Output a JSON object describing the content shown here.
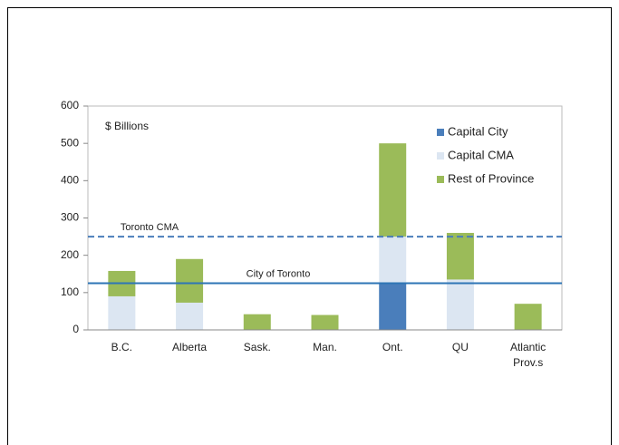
{
  "chart_data": {
    "type": "bar",
    "stacked": true,
    "annotation": "$ Billions",
    "categories": [
      "B.C.",
      "Alberta",
      "Sask.",
      "Man.",
      "Ont.",
      "QU",
      "Atlantic Prov.s"
    ],
    "series": [
      {
        "name": "Capital City",
        "color": "#4a7ebb",
        "values": [
          0,
          0,
          0,
          0,
          125,
          0,
          0
        ]
      },
      {
        "name": "Capital CMA",
        "color": "#dce6f2",
        "values": [
          90,
          73,
          0,
          0,
          125,
          135,
          0
        ]
      },
      {
        "name": "Rest of Province",
        "color": "#9bbb59",
        "values": [
          68,
          117,
          42,
          40,
          250,
          125,
          70
        ]
      }
    ],
    "reference_lines": [
      {
        "label": "Toronto CMA",
        "value": 250,
        "color": "#4a7ebb",
        "dashed": true
      },
      {
        "label": "City of Toronto",
        "value": 125,
        "color": "#2e75b6",
        "dashed": false
      }
    ],
    "ylim": [
      0,
      600
    ],
    "yticks": [
      0,
      100,
      200,
      300,
      400,
      500,
      600
    ],
    "grid": false,
    "legend": "upper right"
  }
}
